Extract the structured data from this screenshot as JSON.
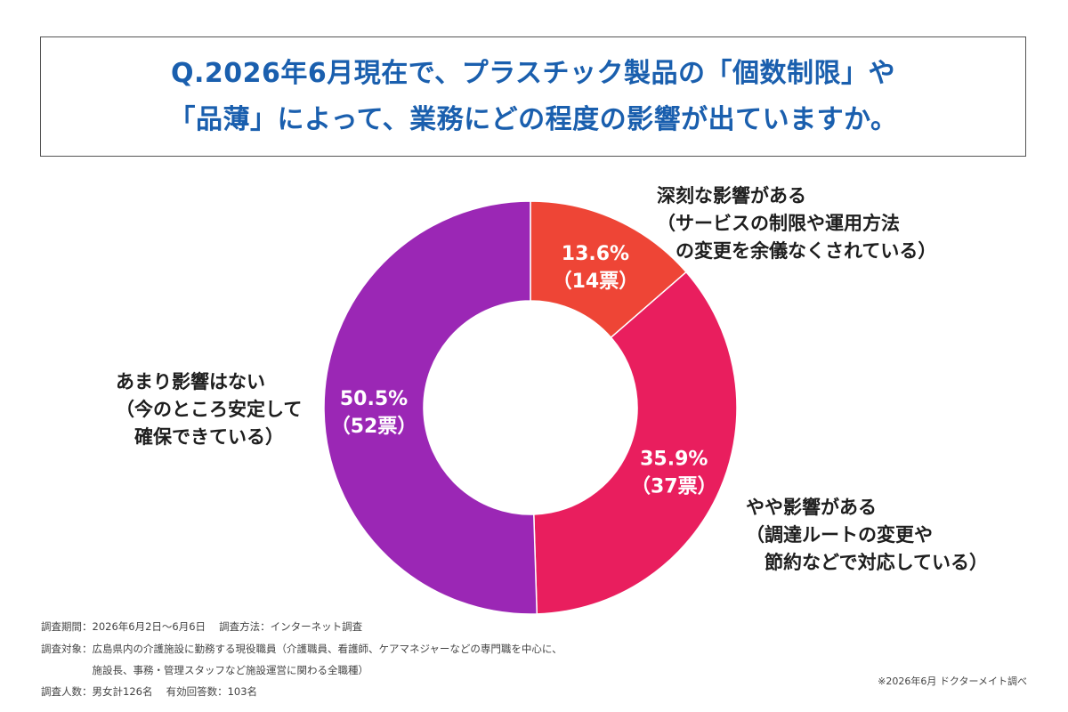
{
  "title": {
    "line1": "Q.2026年6月現在で、プラスチック製品の「個数制限」や",
    "line2": "「品薄」によって、業務にどの程度の影響が出ていますか。"
  },
  "chart_data": {
    "type": "pie",
    "donut": true,
    "start_angle_deg": 0,
    "direction": "clockwise",
    "slices": [
      {
        "label_lines": [
          "深刻な影響がある",
          "（サービスの制限や運用方法",
          "　の変更を余儀なくされている）"
        ],
        "percent": 13.6,
        "percent_label": "13.6%",
        "count_label": "（14票）",
        "votes": 14,
        "color": "#ee4536"
      },
      {
        "label_lines": [
          "やや影響がある",
          "（調達ルートの変更や",
          "　節約などで対応している）"
        ],
        "percent": 35.9,
        "percent_label": "35.9%",
        "count_label": "（37票）",
        "votes": 37,
        "color": "#e91e5e"
      },
      {
        "label_lines": [
          "あまり影響はない",
          "（今のところ安定して",
          "　確保できている）"
        ],
        "percent": 50.5,
        "percent_label": "50.5%",
        "count_label": "（52票）",
        "votes": 52,
        "color": "#9b27b5"
      }
    ]
  },
  "footnotes": {
    "line1": "調査期間：2026年6月2日〜6月6日　 調査方法：インターネット調査",
    "line2": "調査対象：広島県内の介護施設に勤務する現役職員（介護職員、看護師、ケアマネジャーなどの専門職を中心に、",
    "line3": "　　　　　施設長、事務・管理スタッフなど施設運営に関わる全職種）",
    "line4": "調査人数：男女計126名　 有効回答数：103名"
  },
  "credit": "※2026年6月 ドクターメイト調べ"
}
